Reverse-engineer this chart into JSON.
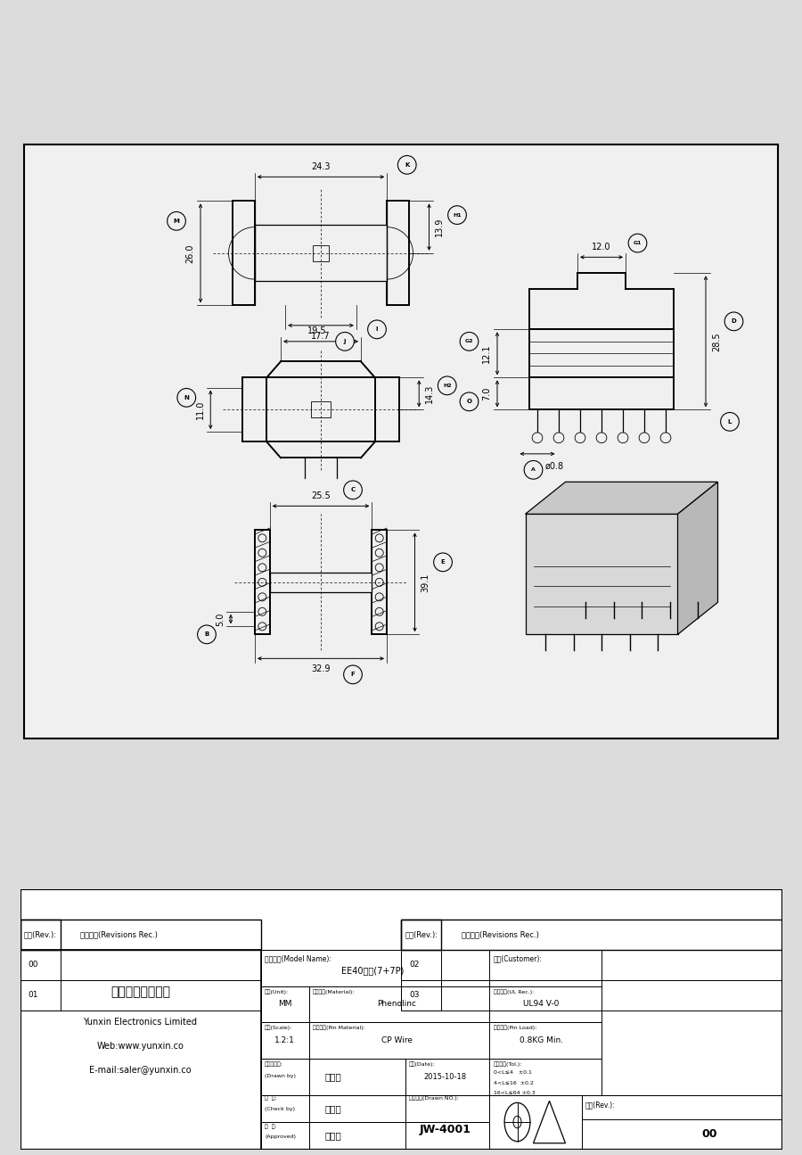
{
  "bg_color": "#e8e8e8",
  "line_color": "#000000",
  "company_chinese": "云芯电子有限公司",
  "company_english": "Yunxin Electronics Limited",
  "web": "Web:www.yunxin.co",
  "email": "E-mail:saler@yunxin.co",
  "model_name_label": "规格描述(Model Name):",
  "model_name_value": "EE40卧式(7+7P)",
  "customer_label": "客户(Customer):",
  "unit_label": "单位(Unit):",
  "unit_value": "MM",
  "material_label": "本体材质(Material):",
  "material_value": "Phenolinc",
  "ul_label": "防火等级(UL Rec.):",
  "ul_value": "UL94 V-0",
  "scale_label": "比例(Scale):",
  "scale_value": "1.2:1",
  "pin_material_label": "针脚材质(Pin Material):",
  "pin_material_value": "CP Wire",
  "pin_load_label": "针脚拉力(Pin Load):",
  "pin_load_value": "0.8KG Min.",
  "drawn_by_value": "刘水强",
  "date_label": "日期(Date):",
  "date_value": "2015-10-18",
  "tol_label": "一般公差(Tol.):",
  "tol_values": [
    "0<L≤4   ±0.1",
    "4<L≤16  ±0.2",
    "16<L≤64 ±0.3"
  ],
  "check_value": "韦景川",
  "product_no_label": "产品编号(Drawn NO.):",
  "product_no_value": "JW-4001",
  "approved_value": "张生坤",
  "rev_label": "版本(Rev.):",
  "rev_value": "00",
  "rev_table_header1": "版本(Rev.):",
  "rev_table_header2": "修改记录(Revisions Rec.)",
  "dims_K": "24.3",
  "dims_M": "26.0",
  "dims_H1": "13.9",
  "dims_J": "17.7",
  "dims_I": "19.5",
  "dims_H2": "14.3",
  "dims_N": "11.0",
  "dims_C": "25.5",
  "dims_B": "5.0",
  "dims_E": "39.1",
  "dims_F": "32.9",
  "dims_G1": "12.0",
  "dims_G2": "12.1",
  "dims_O": "7.0",
  "dims_A": "ø0.8",
  "dims_D": "28.5"
}
